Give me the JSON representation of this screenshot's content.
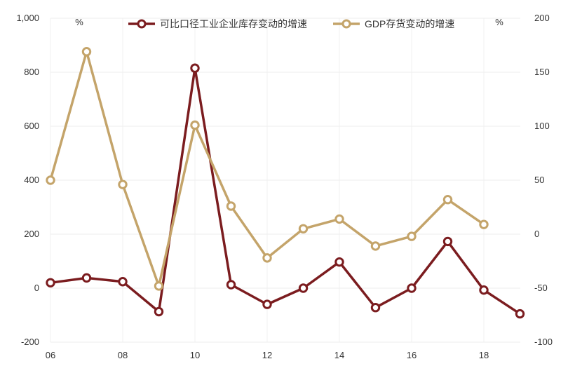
{
  "chart_data": {
    "type": "line",
    "x": [
      "06",
      "07",
      "08",
      "09",
      "10",
      "11",
      "12",
      "13",
      "14",
      "15",
      "16",
      "17",
      "18",
      "19"
    ],
    "x_tick_labels": [
      "06",
      "08",
      "10",
      "12",
      "14",
      "16",
      "18"
    ],
    "left_axis": {
      "unit": "%",
      "ylim": [
        -200,
        1000
      ],
      "ticks": [
        "-200",
        "0",
        "200",
        "400",
        "600",
        "800",
        "1,000"
      ]
    },
    "right_axis": {
      "unit": "%",
      "ylim": [
        -100,
        200
      ],
      "ticks": [
        "-100",
        "-50",
        "0",
        "50",
        "100",
        "150",
        "200"
      ]
    },
    "series": [
      {
        "name": "可比口径工业企业库存变动的增速",
        "axis": "left",
        "color": "#7b1c1f",
        "values": [
          20,
          38,
          24,
          -87,
          815,
          13,
          -60,
          0,
          97,
          -72,
          0,
          173,
          -7,
          -95
        ]
      },
      {
        "name": "GDP存货变动的增速",
        "axis": "right",
        "color": "#c4a46a",
        "values": [
          50,
          169,
          46,
          -48,
          101,
          26,
          -22,
          5,
          14,
          -11,
          -2,
          32,
          9,
          null
        ]
      }
    ],
    "grid": true,
    "legend": "top-center"
  }
}
